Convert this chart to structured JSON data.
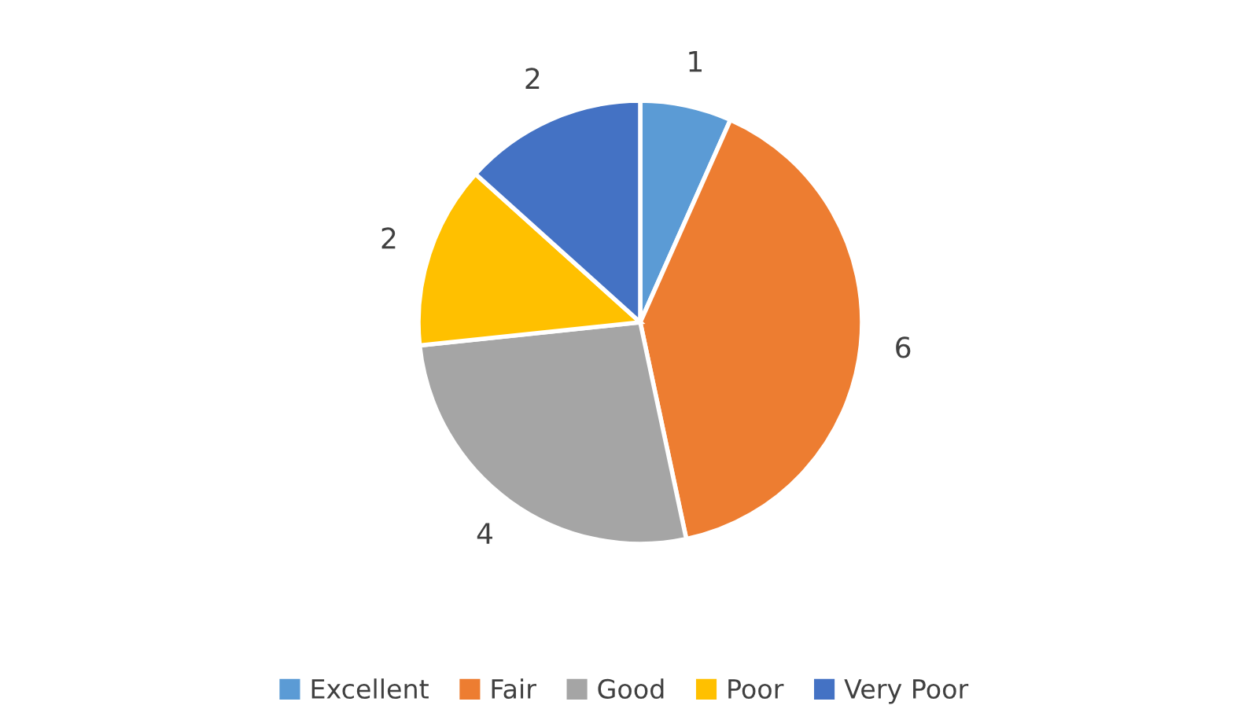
{
  "chart_data": {
    "type": "pie",
    "categories": [
      "Excellent",
      "Fair",
      "Good",
      "Poor",
      "Very Poor"
    ],
    "values": [
      1,
      6,
      4,
      2,
      2
    ],
    "colors": [
      "#5b9bd5",
      "#ed7d31",
      "#a5a5a5",
      "#ffc000",
      "#4472c4"
    ],
    "data_labels": true,
    "legend": "bottom"
  }
}
